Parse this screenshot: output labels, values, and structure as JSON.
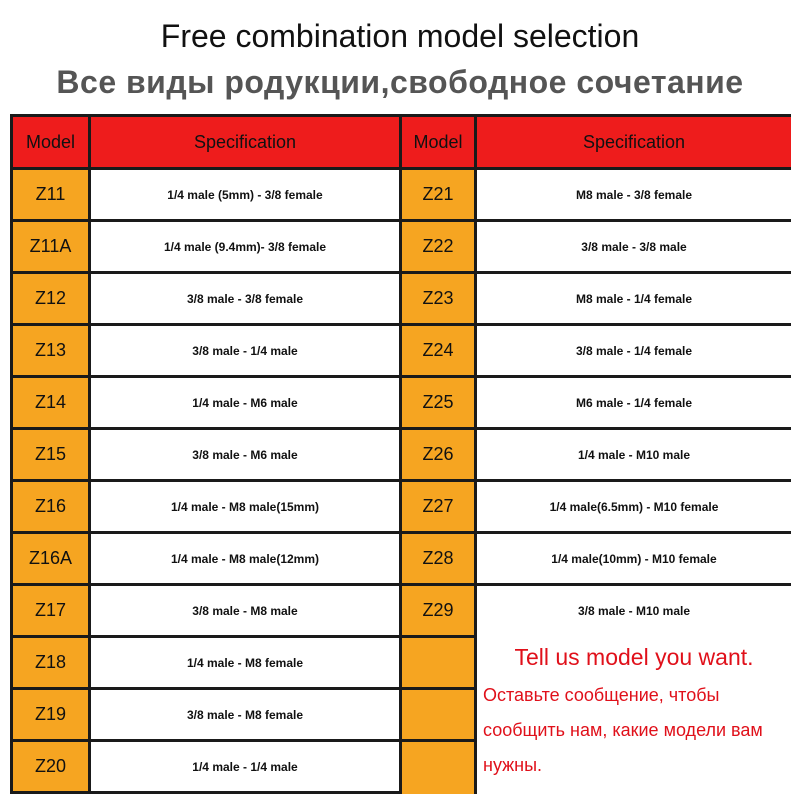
{
  "title_en": "Free combination model selection",
  "title_ru": "Все виды родукции,свободное сочетание",
  "headers": {
    "model": "Model",
    "specification": "Specification"
  },
  "left": [
    {
      "model": "Z11",
      "spec": "1/4 male (5mm) - 3/8 female"
    },
    {
      "model": "Z11A",
      "spec": "1/4 male (9.4mm)- 3/8 female"
    },
    {
      "model": "Z12",
      "spec": "3/8 male - 3/8 female"
    },
    {
      "model": "Z13",
      "spec": "3/8 male - 1/4 male"
    },
    {
      "model": "Z14",
      "spec": "1/4 male - M6 male"
    },
    {
      "model": "Z15",
      "spec": "3/8 male - M6 male"
    },
    {
      "model": "Z16",
      "spec": "1/4 male - M8 male(15mm)"
    },
    {
      "model": "Z16A",
      "spec": "1/4 male - M8 male(12mm)"
    },
    {
      "model": "Z17",
      "spec": "3/8 male - M8 male"
    },
    {
      "model": "Z18",
      "spec": "1/4 male - M8 female"
    },
    {
      "model": "Z19",
      "spec": "3/8 male - M8 female"
    },
    {
      "model": "Z20",
      "spec": "1/4 male - 1/4 male"
    }
  ],
  "right": [
    {
      "model": "Z21",
      "spec": "M8 male - 3/8 female"
    },
    {
      "model": "Z22",
      "spec": "3/8 male - 3/8 male"
    },
    {
      "model": "Z23",
      "spec": "M8 male - 1/4 female"
    },
    {
      "model": "Z24",
      "spec": "3/8 male - 1/4 female"
    },
    {
      "model": "Z25",
      "spec": "M6 male - 1/4 female"
    },
    {
      "model": "Z26",
      "spec": "1/4 male - M10 male"
    },
    {
      "model": "Z27",
      "spec": "1/4 male(6.5mm) - M10 female"
    },
    {
      "model": "Z28",
      "spec": "1/4 male(10mm) - M10 female"
    },
    {
      "model": "Z29",
      "spec": "3/8 male - M10 male"
    }
  ],
  "note": {
    "title": "Tell us model you want.",
    "body": "Оставьте сообщение, чтобы сообщить нам, какие модели вам нужны."
  },
  "colors": {
    "header_red": "#ee1c1c",
    "model_orange": "#f6a521",
    "grid_dark": "#1a1a1a",
    "note_red": "#e0101a"
  }
}
